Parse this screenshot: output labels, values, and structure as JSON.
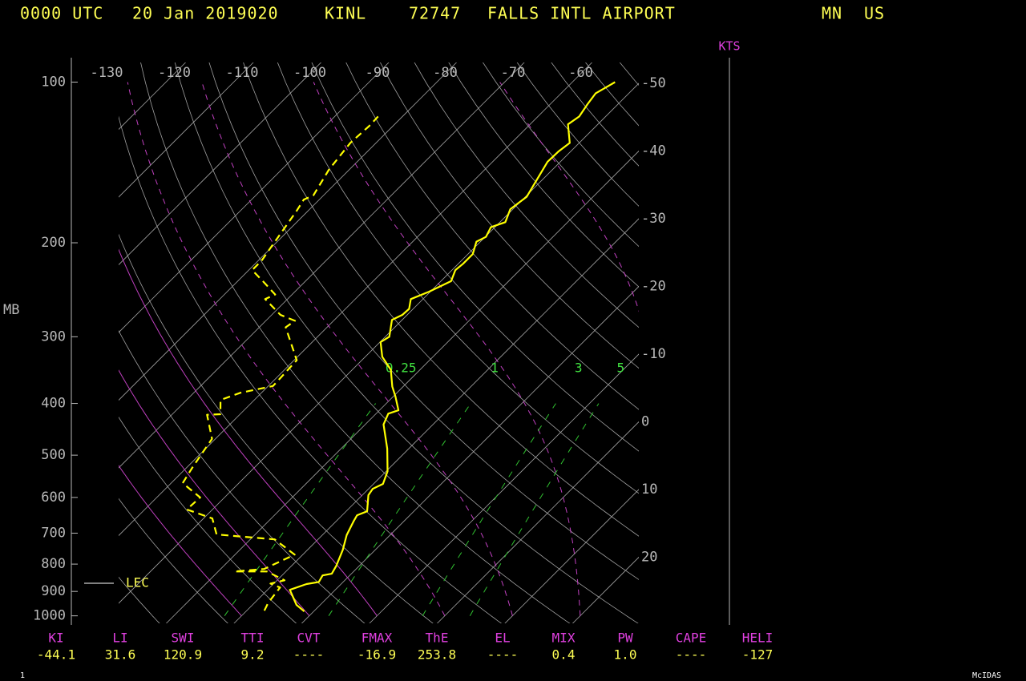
{
  "header": {
    "time": "0000 UTC",
    "date": "20 Jan 2019020",
    "station_id": "KINL",
    "station_number": "72747",
    "station_name": "FALLS INTL AIRPORT",
    "state": "MN",
    "country": "US"
  },
  "chart_data": {
    "type": "skewt",
    "y_label": "MB",
    "log_scale": true,
    "ylim": [
      90,
      1040
    ],
    "yticks": [
      100,
      200,
      300,
      400,
      500,
      600,
      700,
      800,
      900,
      1000
    ],
    "isotherm_ticks_top": [
      -130,
      -120,
      -110,
      -100,
      -90,
      -80,
      -70,
      -60
    ],
    "isotherm_ticks_right": [
      -50,
      -40,
      -30,
      -20,
      -10,
      0,
      10,
      20
    ],
    "dry_adiabats": [
      230,
      240,
      250,
      260,
      270,
      280,
      290,
      300,
      310,
      320,
      330,
      340,
      350,
      360,
      370,
      380,
      390,
      400,
      410,
      420,
      430
    ],
    "moist_adiabats_solid": [
      -30,
      -20,
      -10
    ],
    "moist_adiabats_dashed": [
      0,
      10,
      20,
      30
    ],
    "mixing_ratio_lines": [
      0.25,
      1,
      3,
      5
    ],
    "series": [
      {
        "color": "#ffff00",
        "dashed": false,
        "pressure": [
          981,
          954,
          894,
          872,
          864,
          840,
          834,
          806,
          752,
          706,
          666,
          648,
          637,
          594,
          578,
          566,
          536,
          486,
          438,
          418,
          412,
          388,
          372,
          346,
          327,
          307,
          300,
          279,
          273,
          266,
          255,
          247,
          236,
          225,
          219,
          210,
          199,
          195,
          187,
          183,
          173,
          164,
          141,
          135,
          130,
          120,
          116,
          110,
          105,
          100
        ],
        "values": [
          -21.4,
          -23.5,
          -26.7,
          -25.1,
          -23.6,
          -24.0,
          -22.9,
          -23.4,
          -24.8,
          -26.4,
          -27.4,
          -27.8,
          -26.9,
          -29.1,
          -29.4,
          -28.6,
          -29.8,
          -33.2,
          -37.3,
          -38.2,
          -37.2,
          -39.7,
          -41.6,
          -44.3,
          -47.5,
          -49.9,
          -49.4,
          -51.5,
          -50.7,
          -50.6,
          -51.8,
          -50.2,
          -48.5,
          -49.5,
          -49.3,
          -49.3,
          -50.6,
          -49.9,
          -50.6,
          -49.2,
          -50.4,
          -49.8,
          -51.9,
          -51.8,
          -51.4,
          -54.4,
          -53.9,
          -54.5,
          -54.9,
          -53.7
        ]
      },
      {
        "color": "#ffff00",
        "dashed": true,
        "pressure": [
          978,
          945,
          885,
          870,
          858,
          826,
          826,
          817,
          768,
          719,
          704,
          657,
          632,
          600,
          564,
          526,
          466,
          420,
          419,
          394,
          382,
          371,
          332,
          288,
          280,
          273,
          255,
          250,
          236,
          225,
          216,
          196,
          174,
          166,
          163,
          146,
          130,
          121,
          116
        ],
        "values": [
          -27.4,
          -28.0,
          -28.5,
          -30.5,
          -28.9,
          -32.8,
          -37.6,
          -33.6,
          -31.2,
          -36.4,
          -45.7,
          -48.7,
          -53.8,
          -53.6,
          -58.3,
          -59.2,
          -60.5,
          -64.8,
          -62.9,
          -65.0,
          -63.1,
          -59.3,
          -59.6,
          -66.1,
          -65.7,
          -68.7,
          -73.3,
          -72.5,
          -76.3,
          -79.5,
          -79.5,
          -80.5,
          -81.7,
          -82.3,
          -81.5,
          -83.0,
          -83.8,
          -83.5,
          -83.6
        ]
      }
    ],
    "legend_label": "LEC",
    "wind_label": "KTS"
  },
  "indices": [
    {
      "label": "KI",
      "value": "-44.1"
    },
    {
      "label": "LI",
      "value": "31.6"
    },
    {
      "label": "SWI",
      "value": "120.9"
    },
    {
      "label": "TTI",
      "value": "9.2"
    },
    {
      "label": "CVT",
      "value": "----"
    },
    {
      "label": "FMAX",
      "value": "-16.9"
    },
    {
      "label": "ThE",
      "value": "253.8"
    },
    {
      "label": "EL",
      "value": "----"
    },
    {
      "label": "MIX",
      "value": "0.4"
    },
    {
      "label": "PW",
      "value": "1.0"
    },
    {
      "label": "CAPE",
      "value": "----"
    },
    {
      "label": "HELI",
      "value": "-127"
    }
  ],
  "footer": {
    "frame": "1",
    "software": "McIDAS"
  }
}
